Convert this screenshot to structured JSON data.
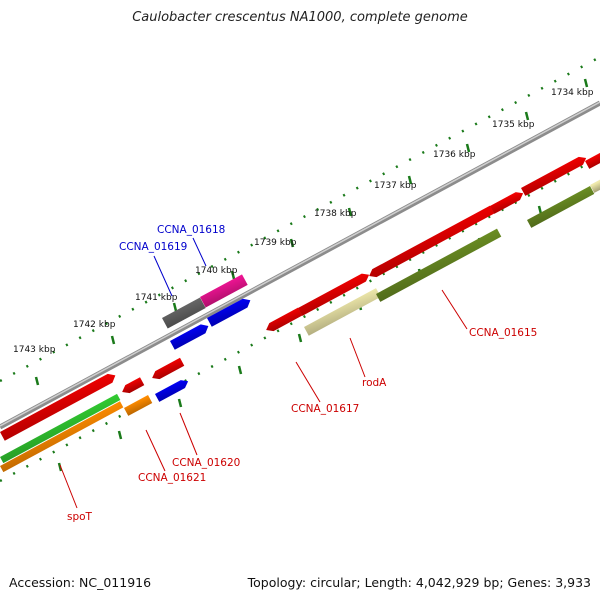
{
  "title": "Caulobacter crescentus NA1000, complete genome",
  "footer": {
    "accession": "Accession: NC_011916",
    "summary": "Topology: circular; Length: 4,042,929 bp; Genes: 3,933"
  },
  "colors": {
    "backbone": "#8c8c8c",
    "tick": "#1a7a1a",
    "gene_label": "#cc0000",
    "highlight_label": "#0000cc",
    "red": "#ee0000",
    "olive": "#6b8e23",
    "khaki": "#eee8aa",
    "green": "#32cd32",
    "orange": "#ff8c00",
    "blue": "#0000ee",
    "magenta": "#ee1493",
    "gray": "#666666"
  },
  "scale": {
    "labels": [
      "1734 kbp",
      "1735 kbp",
      "1736 kbp",
      "1737 kbp",
      "1738 kbp",
      "1739 kbp",
      "1740 kbp",
      "1741 kbp",
      "1742 kbp",
      "1743 kbp"
    ]
  },
  "gene_labels": [
    {
      "text": "CCNA_01618",
      "color": "highlight"
    },
    {
      "text": "CCNA_01619",
      "color": "highlight"
    },
    {
      "text": "CCNA_01615",
      "color": "gene"
    },
    {
      "text": "rodA",
      "color": "gene"
    },
    {
      "text": "CCNA_01617",
      "color": "gene"
    },
    {
      "text": "CCNA_01620",
      "color": "gene"
    },
    {
      "text": "CCNA_01621",
      "color": "gene"
    },
    {
      "text": "spoT",
      "color": "gene"
    }
  ]
}
